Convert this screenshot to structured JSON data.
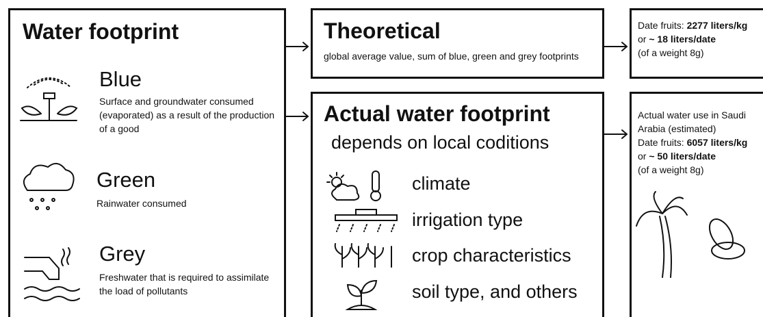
{
  "water_footprint": {
    "title": "Water footprint",
    "items": [
      {
        "label": "Blue",
        "description": "Surface and groundwater consumed (evaporated) as a result of the production of a good"
      },
      {
        "label": "Green",
        "description": "Rainwater consumed"
      },
      {
        "label": "Grey",
        "description": "Freshwater that is required to assimilate the load of pollutants"
      }
    ]
  },
  "theoretical": {
    "title": "Theoretical",
    "description": "global average value, sum of blue, green and grey footprints"
  },
  "actual": {
    "title": "Actual water footprint",
    "subtitle": "depends on local coditions",
    "factors": [
      "climate",
      "irrigation type",
      "crop characteristics",
      "soil type, and others"
    ]
  },
  "theoretical_result": {
    "lines": [
      [
        {
          "text": "Date fruits: "
        },
        {
          "text": "2277 liters/kg",
          "bold": true
        }
      ],
      [
        {
          "text": "or "
        },
        {
          "text": "~ 18 liters/date",
          "bold": true
        }
      ],
      [
        {
          "text": "(of a weight 8g)"
        }
      ]
    ]
  },
  "actual_result": {
    "intro": "Actual water use in Saudi Arabia (estimated)",
    "lines": [
      [
        {
          "text": "Date fruits: "
        },
        {
          "text": "6057 liters/kg",
          "bold": true
        }
      ],
      [
        {
          "text": "or "
        },
        {
          "text": "~ 50 liters/date",
          "bold": true
        }
      ],
      [
        {
          "text": "(of a weight 8g)"
        }
      ]
    ]
  }
}
